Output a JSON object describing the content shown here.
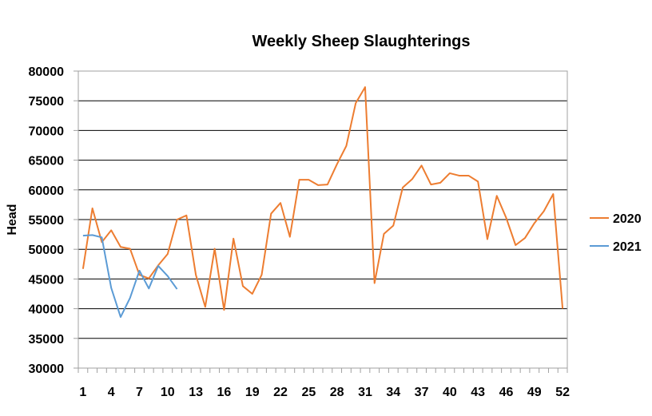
{
  "chart_data": {
    "type": "line",
    "title": "Weekly Sheep Slaughterings",
    "xlabel": "",
    "ylabel": "Head",
    "ylim": [
      30000,
      80000
    ],
    "yticks": [
      30000,
      35000,
      40000,
      45000,
      50000,
      55000,
      60000,
      65000,
      70000,
      75000,
      80000
    ],
    "xlim": [
      1,
      53
    ],
    "xticks": [
      1,
      4,
      7,
      10,
      13,
      16,
      19,
      22,
      25,
      28,
      31,
      34,
      37,
      40,
      43,
      46,
      49,
      52
    ],
    "grid": "horizontal",
    "legend": "right",
    "series": [
      {
        "name": "2020",
        "color": "#ED7D31",
        "x": [
          1,
          2,
          3,
          4,
          5,
          6,
          7,
          8,
          9,
          10,
          11,
          12,
          13,
          14,
          15,
          16,
          17,
          18,
          19,
          20,
          21,
          22,
          23,
          24,
          25,
          26,
          27,
          28,
          29,
          30,
          31,
          32,
          33,
          34,
          35,
          36,
          37,
          38,
          39,
          40,
          41,
          42,
          43,
          44,
          45,
          46,
          47,
          48,
          49,
          50,
          51,
          52
        ],
        "values": [
          46700,
          56900,
          51200,
          53200,
          50400,
          50100,
          45700,
          45100,
          47300,
          49200,
          55000,
          55700,
          45700,
          40300,
          50100,
          39800,
          51800,
          43800,
          42500,
          45700,
          56000,
          57800,
          52100,
          61700,
          61700,
          60800,
          60900,
          64300,
          67400,
          74600,
          77300,
          44300,
          52600,
          54000,
          60400,
          61800,
          64100,
          60900,
          61200,
          62800,
          62400,
          62400,
          61400,
          51700,
          59000,
          55300,
          50700,
          51900,
          54400,
          56400,
          59300,
          40000
        ]
      },
      {
        "name": "2021",
        "color": "#5B9BD5",
        "x": [
          1,
          2,
          3,
          4,
          5,
          6,
          7,
          8,
          9,
          10,
          11
        ],
        "values": [
          52300,
          52400,
          52000,
          43500,
          38600,
          41800,
          46400,
          43400,
          47200,
          45500,
          43300
        ]
      }
    ]
  }
}
